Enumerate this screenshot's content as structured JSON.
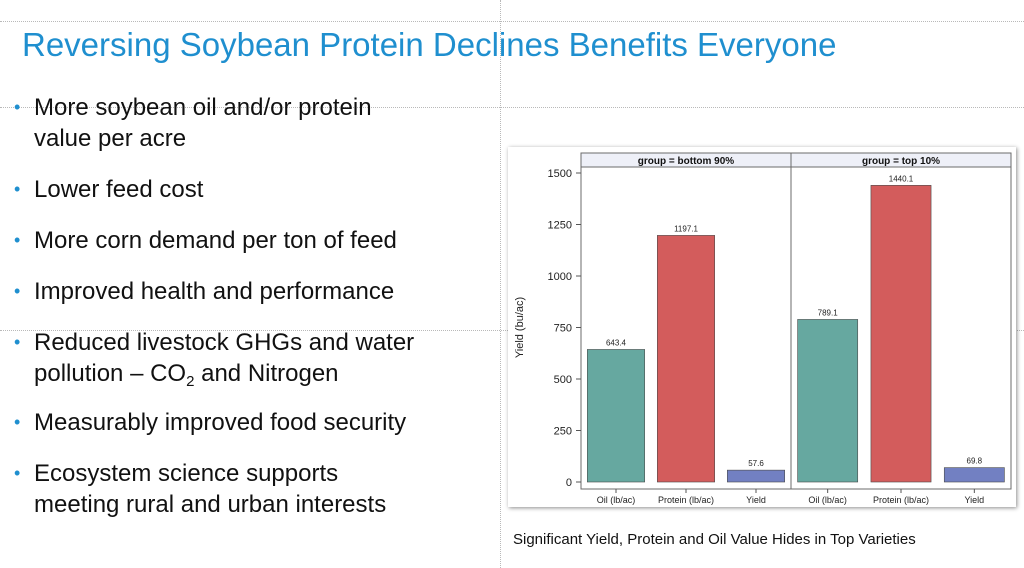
{
  "slide": {
    "title": "Reversing Soybean Protein Declines Benefits Everyone",
    "bullets": [
      {
        "lines": [
          "More soybean oil and/or protein",
          "value per acre"
        ]
      },
      {
        "lines": [
          "Lower feed cost"
        ]
      },
      {
        "lines": [
          "More corn demand per ton of feed"
        ]
      },
      {
        "lines": [
          "Improved health and performance"
        ]
      },
      {
        "lines": [
          "Reduced livestock GHGs and water",
          "pollution – CO"
        ],
        "sub": "2",
        "after": " and Nitrogen"
      },
      {
        "lines": [
          "Measurably improved food security"
        ]
      },
      {
        "lines": [
          "Ecosystem science supports",
          "meeting rural and urban interests"
        ]
      }
    ],
    "caption": "Significant Yield, Protein and Oil Value Hides in Top Varieties",
    "bullet_color": "#1f8fcf",
    "title_color": "#1f8fcf"
  },
  "chart_data": {
    "type": "bar",
    "ylabel": "Yield (bu/ac)",
    "ylim": [
      0,
      1500
    ],
    "yticks": [
      0,
      250,
      500,
      750,
      1000,
      1250,
      1500
    ],
    "categories": [
      "Oil (lb/ac)",
      "Protein (lb/ac)",
      "Yield"
    ],
    "bar_colors": [
      "#66a8a0",
      "#d35c5c",
      "#7280c2"
    ],
    "panels": [
      {
        "label": "group = bottom 90%",
        "values": [
          643.4,
          1197.1,
          57.6
        ],
        "value_labels": [
          "643.4",
          "1197.1",
          "57.6"
        ]
      },
      {
        "label": "group = top 10%",
        "values": [
          789.1,
          1440.1,
          69.8
        ],
        "value_labels": [
          "789.1",
          "1440.1",
          "69.8"
        ]
      }
    ],
    "grid": false
  }
}
